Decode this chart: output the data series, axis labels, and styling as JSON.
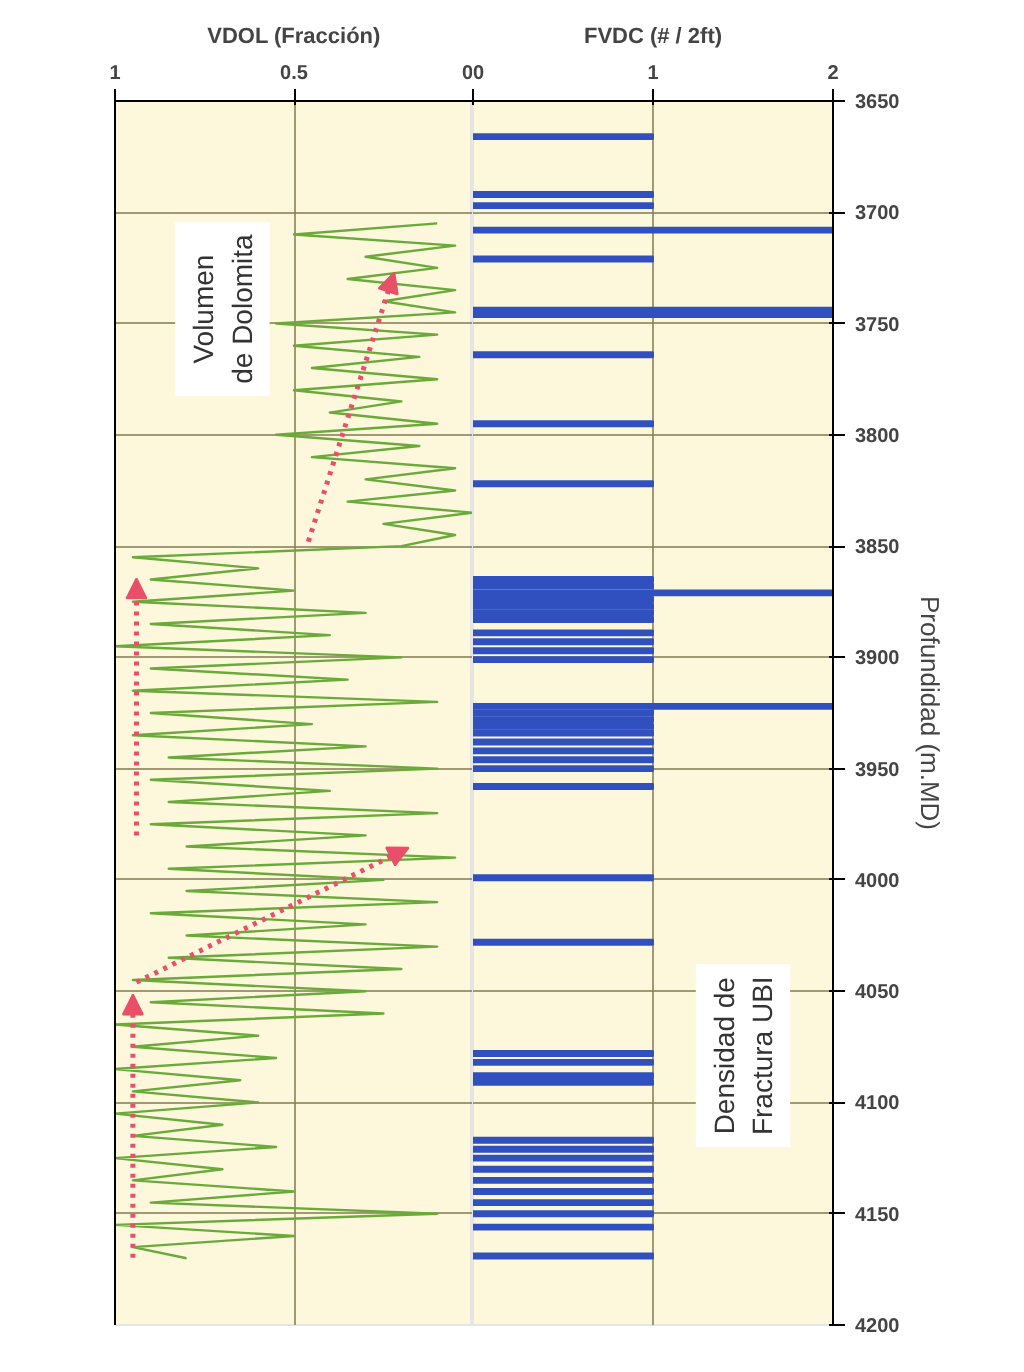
{
  "chart_data": [
    {
      "type": "line",
      "orientation": "horizontal",
      "title": "VDOL (Fracción)",
      "annotations": [
        "Volumen\nde Dolomita"
      ],
      "x": [
        3705,
        3710,
        3715,
        3720,
        3725,
        3730,
        3735,
        3740,
        3745,
        3750,
        3755,
        3760,
        3765,
        3770,
        3775,
        3780,
        3785,
        3790,
        3795,
        3800,
        3805,
        3810,
        3815,
        3820,
        3825,
        3830,
        3835,
        3840,
        3845,
        3850,
        3855,
        3860,
        3865,
        3870,
        3875,
        3880,
        3885,
        3890,
        3895,
        3900,
        3905,
        3910,
        3915,
        3920,
        3925,
        3930,
        3935,
        3940,
        3945,
        3950,
        3955,
        3960,
        3965,
        3970,
        3975,
        3980,
        3985,
        3990,
        3995,
        4000,
        4005,
        4010,
        4015,
        4020,
        4025,
        4030,
        4035,
        4040,
        4045,
        4050,
        4055,
        4060,
        4065,
        4070,
        4075,
        4080,
        4085,
        4090,
        4095,
        4100,
        4105,
        4110,
        4115,
        4120,
        4125,
        4130,
        4135,
        4140,
        4145,
        4150,
        4155,
        4160,
        4165,
        4170
      ],
      "series": [
        {
          "color": "#6aaa3a",
          "values": [
            0.1,
            0.5,
            0.05,
            0.3,
            0.1,
            0.35,
            0.05,
            0.25,
            0.05,
            0.55,
            0.1,
            0.5,
            0.15,
            0.45,
            0.1,
            0.5,
            0.2,
            0.4,
            0.1,
            0.55,
            0.15,
            0.45,
            0.05,
            0.3,
            0.05,
            0.35,
            0.0,
            0.25,
            0.05,
            0.2,
            0.95,
            0.6,
            0.9,
            0.5,
            0.95,
            0.3,
            0.9,
            0.4,
            1.0,
            0.2,
            0.9,
            0.35,
            0.95,
            0.1,
            0.9,
            0.45,
            0.95,
            0.3,
            0.85,
            0.1,
            0.9,
            0.4,
            0.85,
            0.1,
            0.9,
            0.3,
            0.8,
            0.05,
            0.85,
            0.25,
            0.8,
            0.1,
            0.9,
            0.3,
            0.8,
            0.1,
            0.85,
            0.2,
            0.95,
            0.3,
            0.9,
            0.25,
            1.0,
            0.6,
            0.95,
            0.55,
            1.0,
            0.65,
            0.95,
            0.6,
            1.0,
            0.7,
            0.95,
            0.55,
            1.0,
            0.7,
            0.95,
            0.5,
            0.9,
            0.1,
            1.0,
            0.5,
            0.95,
            0.8
          ]
        }
      ],
      "xlim": [
        1,
        0
      ],
      "xticks": [
        1,
        0.5,
        0
      ],
      "ylim": [
        4200,
        3650
      ],
      "yticks": [
        3650,
        3700,
        3750,
        3800,
        3850,
        3900,
        3950,
        4000,
        4050,
        4100,
        4150,
        4200
      ],
      "tick_labels": "x",
      "grid": true
    },
    {
      "type": "bar",
      "orientation": "horizontal",
      "title": "FVDC (# / 2ft)",
      "ylabel": "Profundidad (m.MD)",
      "annotations": [
        "Densidad de\nFractura UBI"
      ],
      "x": [
        3666,
        3692,
        3697,
        3708,
        3721,
        3744,
        3746,
        3764,
        3795,
        3822,
        3865,
        3868,
        3871,
        3874,
        3877,
        3880,
        3883,
        3889,
        3893,
        3897,
        3901,
        3922,
        3925,
        3928,
        3931,
        3934,
        3938,
        3942,
        3946,
        3950,
        3958,
        3999,
        4028,
        4078,
        4082,
        4088,
        4091,
        4117,
        4121,
        4125,
        4130,
        4135,
        4140,
        4145,
        4150,
        4156,
        4169
      ],
      "values": [
        1,
        1,
        1,
        2,
        1,
        2,
        2,
        1,
        1,
        1,
        1,
        1,
        2,
        1,
        1,
        1,
        1,
        1,
        1,
        1,
        1,
        2,
        1,
        1,
        1,
        1,
        1,
        1,
        1,
        1,
        1,
        1,
        1,
        1,
        1,
        1,
        1,
        1,
        1,
        1,
        1,
        1,
        1,
        1,
        1,
        1,
        1
      ],
      "color": "#3050c0",
      "xlim": [
        0,
        2
      ],
      "xticks": [
        0,
        1,
        2
      ],
      "ylim": [
        4200,
        3650
      ],
      "yticks": [
        3650,
        3700,
        3750,
        3800,
        3850,
        3900,
        3950,
        4000,
        4050,
        4100,
        4150,
        4200
      ],
      "grid": true
    }
  ]
}
